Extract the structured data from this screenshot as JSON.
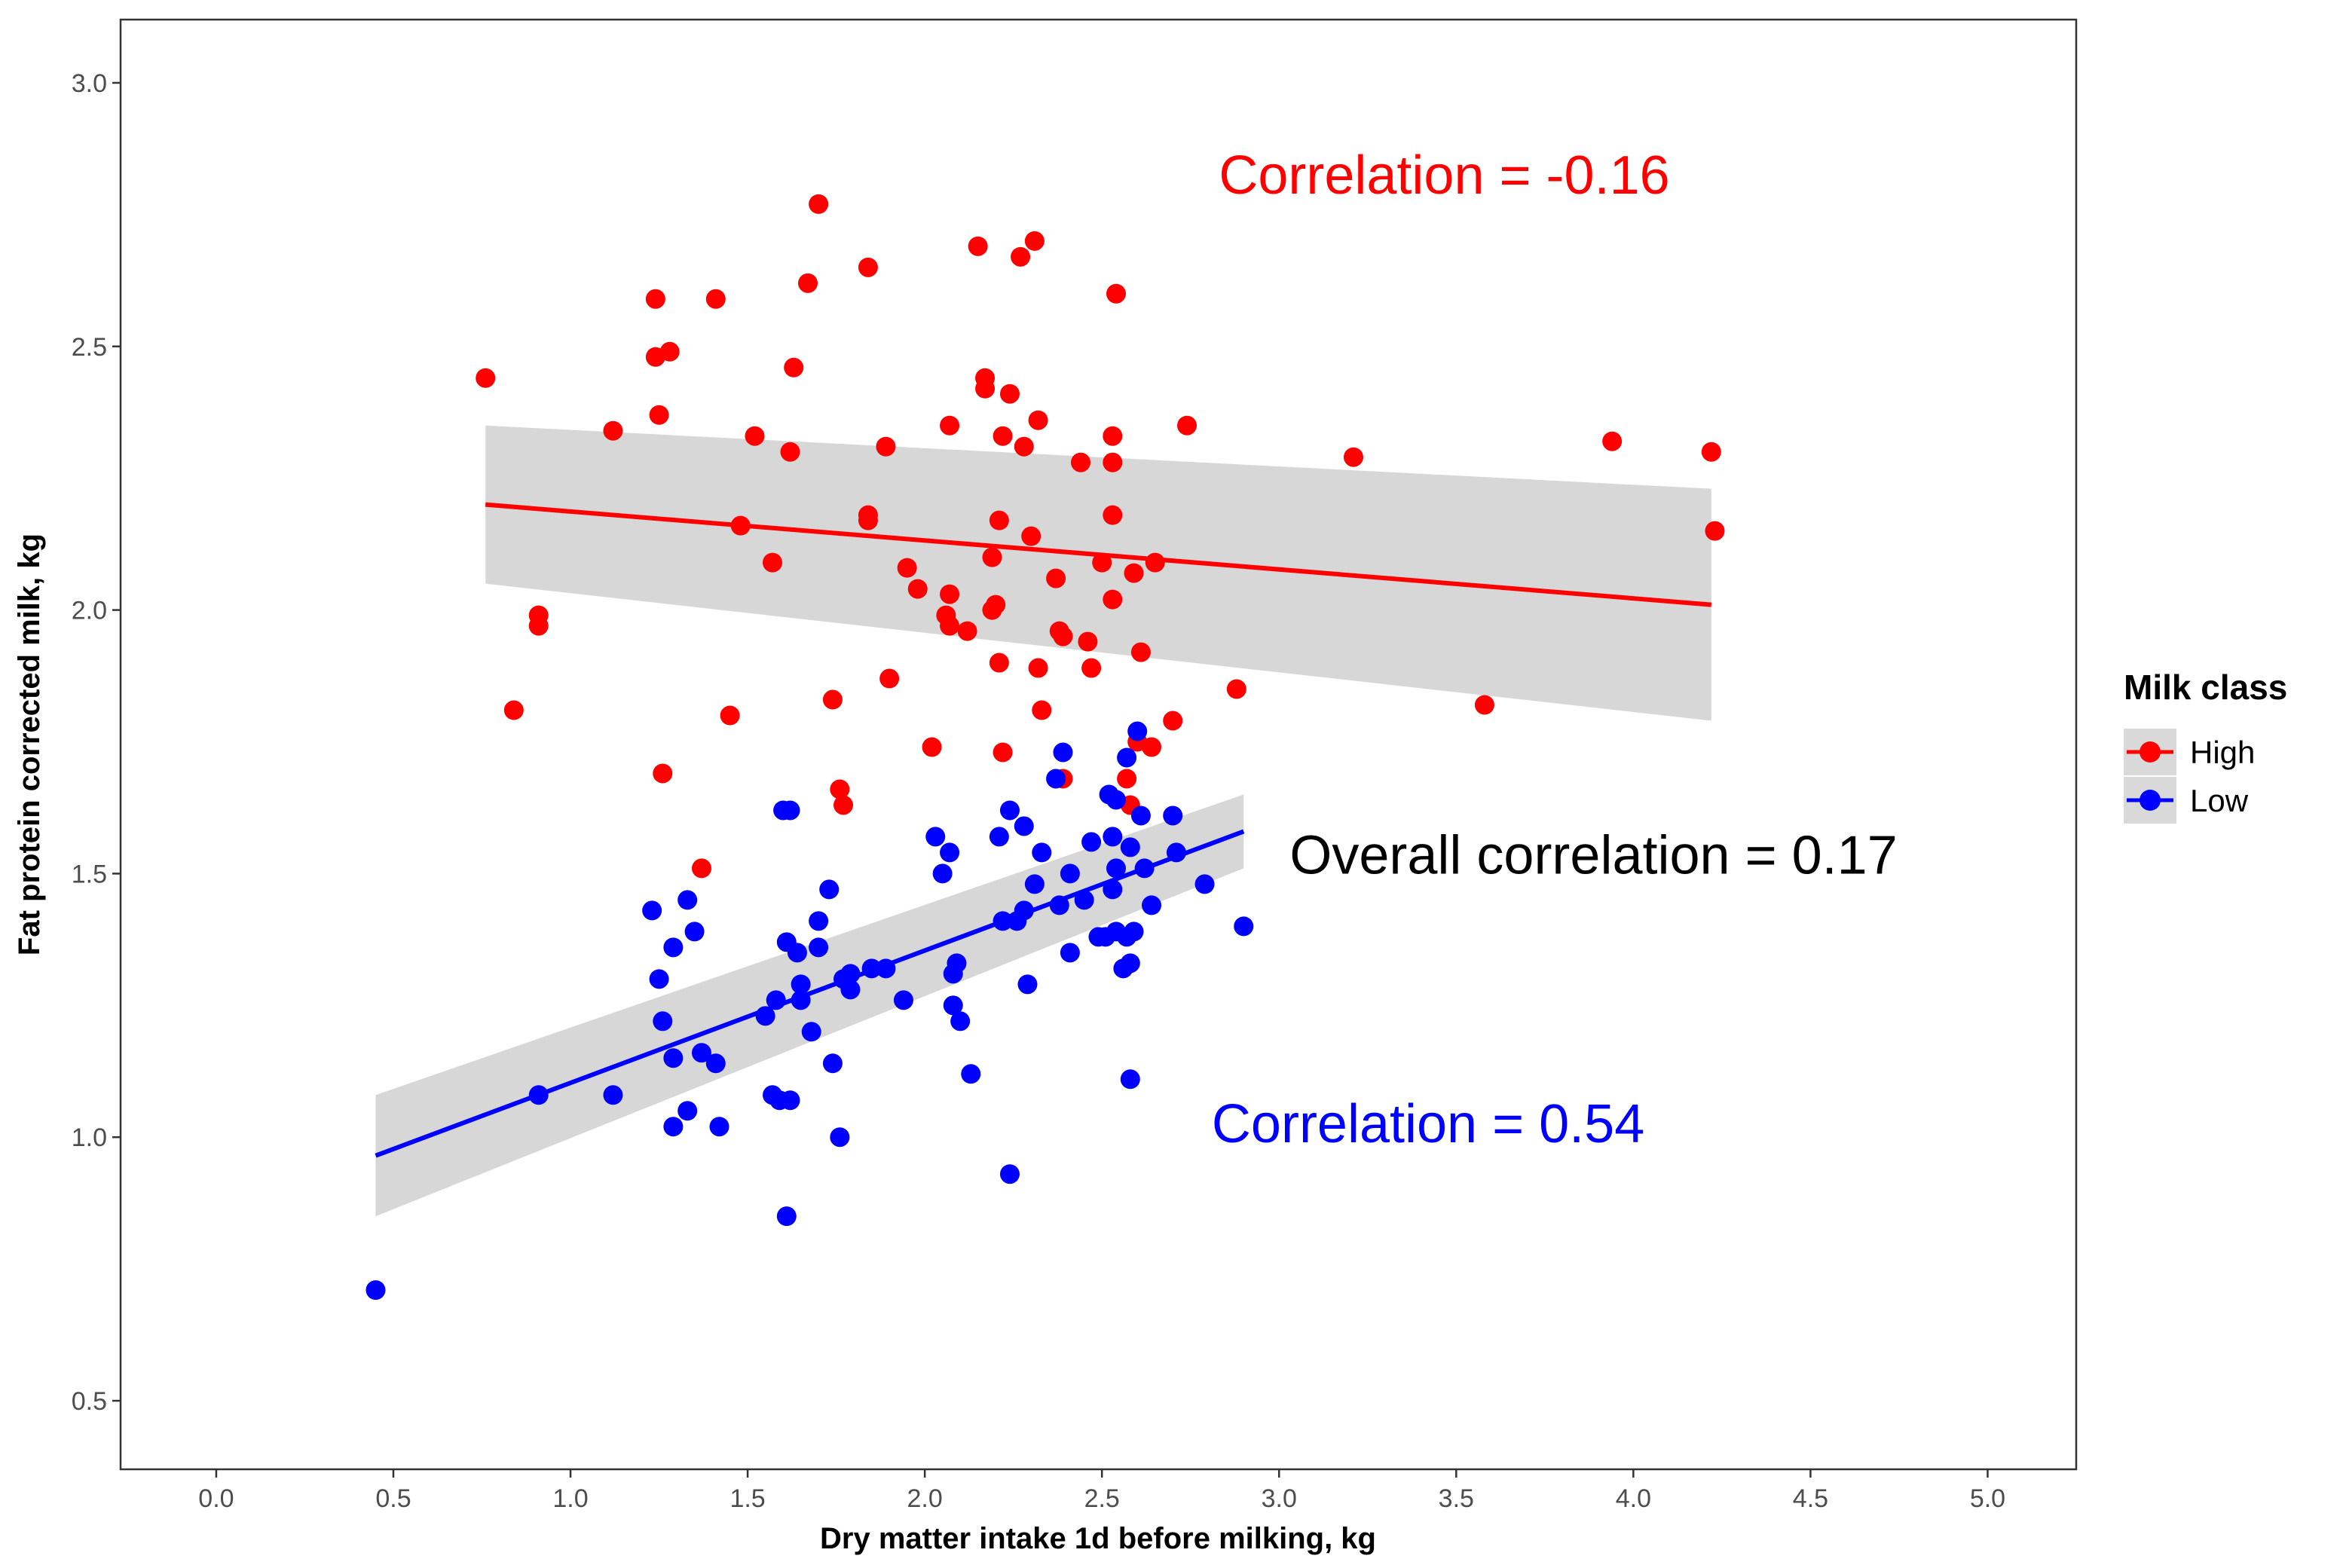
{
  "chart_data": {
    "type": "scatter",
    "title": "",
    "xlabel": "Dry matter intake 1d before milking, kg",
    "ylabel": "Fat protein corrected milk, kg",
    "xlim": [
      -0.27,
      5.25
    ],
    "ylim": [
      0.37,
      3.12
    ],
    "x_ticks": [
      "0.0",
      "0.5",
      "1.0",
      "1.5",
      "2.0",
      "2.5",
      "3.0",
      "3.5",
      "4.0",
      "4.5",
      "5.0"
    ],
    "y_ticks": [
      "0.5",
      "1.0",
      "1.5",
      "2.0",
      "2.5",
      "3.0"
    ],
    "grid": false,
    "legend": {
      "title": "Milk class",
      "position": "right",
      "entries": [
        {
          "label": "High",
          "color": "#ff0000"
        },
        {
          "label": "Low",
          "color": "#0000ff"
        }
      ]
    },
    "annotations": [
      {
        "text": "Correlation = -0.16",
        "color": "#ff0000",
        "x": 2.83,
        "y": 2.79
      },
      {
        "text": "Overall correlation = 0.17",
        "color": "#000000",
        "x": 3.03,
        "y": 1.5
      },
      {
        "text": "Correlation = 0.54",
        "color": "#0000ff",
        "x": 2.81,
        "y": 0.99
      }
    ],
    "series": [
      {
        "name": "High",
        "color": "#ff0000",
        "points": [
          [
            0.76,
            2.44
          ],
          [
            0.84,
            1.81
          ],
          [
            0.91,
            1.99
          ],
          [
            0.91,
            1.97
          ],
          [
            1.12,
            2.34
          ],
          [
            1.24,
            2.59
          ],
          [
            1.24,
            2.48
          ],
          [
            1.25,
            2.37
          ],
          [
            1.26,
            1.69
          ],
          [
            1.28,
            2.49
          ],
          [
            1.37,
            1.51
          ],
          [
            1.41,
            2.59
          ],
          [
            1.45,
            1.8
          ],
          [
            1.48,
            2.16
          ],
          [
            1.52,
            2.33
          ],
          [
            1.57,
            2.09
          ],
          [
            1.62,
            2.3
          ],
          [
            1.63,
            2.46
          ],
          [
            1.67,
            2.62
          ],
          [
            1.7,
            2.77
          ],
          [
            1.74,
            1.83
          ],
          [
            1.76,
            1.66
          ],
          [
            1.77,
            1.63
          ],
          [
            1.84,
            2.65
          ],
          [
            1.84,
            2.17
          ],
          [
            1.84,
            2.18
          ],
          [
            1.89,
            2.31
          ],
          [
            1.9,
            1.87
          ],
          [
            1.95,
            2.08
          ],
          [
            1.98,
            2.04
          ],
          [
            2.02,
            1.74
          ],
          [
            2.06,
            1.99
          ],
          [
            2.07,
            1.97
          ],
          [
            2.07,
            2.35
          ],
          [
            2.07,
            2.03
          ],
          [
            2.12,
            1.96
          ],
          [
            2.15,
            2.69
          ],
          [
            2.17,
            2.44
          ],
          [
            2.17,
            2.42
          ],
          [
            2.19,
            2.1
          ],
          [
            2.19,
            2.0
          ],
          [
            2.2,
            2.01
          ],
          [
            2.21,
            2.17
          ],
          [
            2.21,
            1.9
          ],
          [
            2.22,
            2.33
          ],
          [
            2.22,
            1.73
          ],
          [
            2.24,
            2.41
          ],
          [
            2.27,
            2.67
          ],
          [
            2.28,
            2.31
          ],
          [
            2.3,
            2.14
          ],
          [
            2.31,
            2.7
          ],
          [
            2.32,
            2.36
          ],
          [
            2.32,
            1.89
          ],
          [
            2.33,
            1.81
          ],
          [
            2.37,
            2.06
          ],
          [
            2.38,
            1.96
          ],
          [
            2.39,
            1.95
          ],
          [
            2.39,
            1.68
          ],
          [
            2.44,
            2.28
          ],
          [
            2.46,
            1.94
          ],
          [
            2.47,
            1.89
          ],
          [
            2.5,
            2.09
          ],
          [
            2.53,
            2.33
          ],
          [
            2.53,
            2.28
          ],
          [
            2.53,
            2.18
          ],
          [
            2.53,
            2.02
          ],
          [
            2.54,
            2.6
          ],
          [
            2.57,
            1.68
          ],
          [
            2.58,
            1.63
          ],
          [
            2.59,
            2.07
          ],
          [
            2.6,
            1.75
          ],
          [
            2.61,
            1.92
          ],
          [
            2.64,
            1.74
          ],
          [
            2.65,
            2.09
          ],
          [
            2.7,
            1.79
          ],
          [
            2.74,
            2.35
          ],
          [
            2.88,
            1.85
          ],
          [
            3.21,
            2.29
          ],
          [
            3.58,
            1.82
          ],
          [
            3.94,
            2.32
          ],
          [
            4.22,
            2.3
          ],
          [
            4.23,
            2.15
          ]
        ],
        "fit": {
          "x": [
            0.76,
            4.22
          ],
          "y": [
            2.2,
            2.01
          ],
          "ci_low": [
            2.05,
            1.79
          ],
          "ci_high": [
            2.35,
            2.23
          ]
        }
      },
      {
        "name": "Low",
        "color": "#0000ff",
        "points": [
          [
            0.45,
            0.71
          ],
          [
            0.91,
            1.08
          ],
          [
            1.12,
            1.08
          ],
          [
            1.23,
            1.43
          ],
          [
            1.25,
            1.3
          ],
          [
            1.26,
            1.22
          ],
          [
            1.29,
            1.15
          ],
          [
            1.29,
            1.36
          ],
          [
            1.29,
            1.02
          ],
          [
            1.33,
            1.45
          ],
          [
            1.33,
            1.05
          ],
          [
            1.35,
            1.39
          ],
          [
            1.37,
            1.16
          ],
          [
            1.41,
            1.14
          ],
          [
            1.42,
            1.02
          ],
          [
            1.55,
            1.23
          ],
          [
            1.57,
            1.08
          ],
          [
            1.58,
            1.26
          ],
          [
            1.59,
            1.07
          ],
          [
            1.6,
            1.62
          ],
          [
            1.61,
            1.37
          ],
          [
            1.61,
            0.85
          ],
          [
            1.62,
            1.62
          ],
          [
            1.62,
            1.07
          ],
          [
            1.64,
            1.35
          ],
          [
            1.65,
            1.29
          ],
          [
            1.65,
            1.26
          ],
          [
            1.68,
            1.2
          ],
          [
            1.7,
            1.36
          ],
          [
            1.7,
            1.41
          ],
          [
            1.73,
            1.47
          ],
          [
            1.74,
            1.14
          ],
          [
            1.76,
            1.0
          ],
          [
            1.77,
            1.3
          ],
          [
            1.79,
            1.28
          ],
          [
            1.79,
            1.31
          ],
          [
            1.85,
            1.32
          ],
          [
            1.89,
            1.32
          ],
          [
            1.94,
            1.26
          ],
          [
            2.03,
            1.57
          ],
          [
            2.05,
            1.5
          ],
          [
            2.07,
            1.54
          ],
          [
            2.08,
            1.31
          ],
          [
            2.08,
            1.25
          ],
          [
            2.09,
            1.33
          ],
          [
            2.1,
            1.22
          ],
          [
            2.13,
            1.12
          ],
          [
            2.21,
            1.57
          ],
          [
            2.22,
            1.41
          ],
          [
            2.24,
            0.93
          ],
          [
            2.24,
            1.62
          ],
          [
            2.26,
            1.41
          ],
          [
            2.28,
            1.59
          ],
          [
            2.28,
            1.43
          ],
          [
            2.29,
            1.29
          ],
          [
            2.31,
            1.48
          ],
          [
            2.33,
            1.54
          ],
          [
            2.37,
            1.68
          ],
          [
            2.38,
            1.44
          ],
          [
            2.39,
            1.73
          ],
          [
            2.41,
            1.35
          ],
          [
            2.41,
            1.5
          ],
          [
            2.45,
            1.45
          ],
          [
            2.47,
            1.56
          ],
          [
            2.49,
            1.38
          ],
          [
            2.51,
            1.38
          ],
          [
            2.52,
            1.65
          ],
          [
            2.53,
            1.57
          ],
          [
            2.53,
            1.47
          ],
          [
            2.54,
            1.64
          ],
          [
            2.54,
            1.51
          ],
          [
            2.54,
            1.39
          ],
          [
            2.56,
            1.32
          ],
          [
            2.57,
            1.72
          ],
          [
            2.57,
            1.38
          ],
          [
            2.58,
            1.55
          ],
          [
            2.58,
            1.33
          ],
          [
            2.58,
            1.11
          ],
          [
            2.59,
            1.39
          ],
          [
            2.6,
            1.77
          ],
          [
            2.61,
            1.61
          ],
          [
            2.62,
            1.51
          ],
          [
            2.64,
            1.44
          ],
          [
            2.7,
            1.61
          ],
          [
            2.71,
            1.54
          ],
          [
            2.79,
            1.48
          ],
          [
            2.9,
            1.4
          ]
        ],
        "fit": {
          "x": [
            0.45,
            2.9
          ],
          "y": [
            0.965,
            1.58
          ],
          "ci_low": [
            0.85,
            1.51
          ],
          "ci_high": [
            1.08,
            1.65
          ]
        }
      }
    ]
  }
}
